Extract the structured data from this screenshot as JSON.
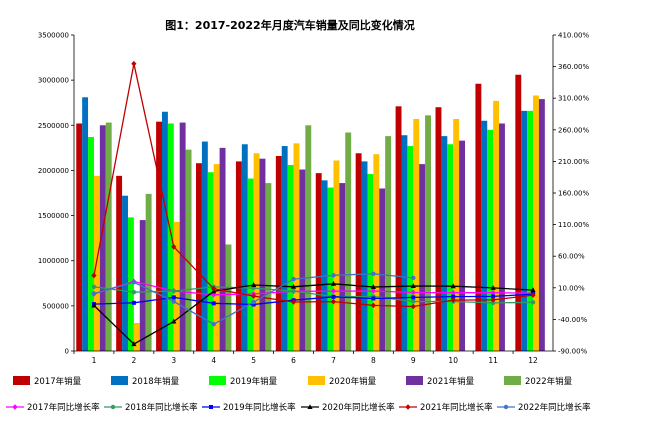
{
  "chart_data": {
    "type": "bar",
    "title": "图1：2017-2022年月度汽车销量及同比变化情况",
    "categories": [
      "1",
      "2",
      "3",
      "4",
      "5",
      "6",
      "7",
      "8",
      "9",
      "10",
      "11",
      "12"
    ],
    "left_axis": {
      "range": [
        0,
        3500000
      ],
      "ticks": [
        "0",
        "500000",
        "1000000",
        "1500000",
        "2000000",
        "2500000",
        "3000000",
        "3500000"
      ]
    },
    "right_axis": {
      "range": [
        -90,
        410
      ],
      "ticks": [
        "-90.00%",
        "-40.00%",
        "10.00%",
        "60.00%",
        "110.00%",
        "160.00%",
        "210.00%",
        "260.00%",
        "310.00%",
        "360.00%",
        "410.00%"
      ]
    },
    "grid": false,
    "legend_position": "bottom",
    "bar_series": [
      {
        "name": "2017年销量",
        "color": "#c00000",
        "values": [
          2520000,
          1940000,
          2540000,
          2080000,
          2100000,
          2160000,
          1970000,
          2190000,
          2710000,
          2700000,
          2960000,
          3060000
        ]
      },
      {
        "name": "2018年销量",
        "color": "#0070c0",
        "values": [
          2810000,
          1720000,
          2650000,
          2320000,
          2290000,
          2270000,
          1890000,
          2100000,
          2390000,
          2380000,
          2550000,
          2660000
        ]
      },
      {
        "name": "2019年销量",
        "color": "#00ff00",
        "values": [
          2370000,
          1480000,
          2520000,
          1980000,
          1910000,
          2060000,
          1810000,
          1960000,
          2270000,
          2290000,
          2450000,
          2660000
        ]
      },
      {
        "name": "2020年销量",
        "color": "#ffc000",
        "values": [
          1940000,
          310000,
          1430000,
          2070000,
          2190000,
          2300000,
          2110000,
          2180000,
          2570000,
          2570000,
          2770000,
          2830000
        ]
      },
      {
        "name": "2021年销量",
        "color": "#7030a0",
        "values": [
          2500000,
          1450000,
          2530000,
          2250000,
          2130000,
          2010000,
          1860000,
          1800000,
          2070000,
          2330000,
          2520000,
          2790000
        ]
      },
      {
        "name": "2022年销量",
        "color": "#70ad47",
        "values": [
          2530000,
          1740000,
          2230000,
          1180000,
          1860000,
          2500000,
          2420000,
          2380000,
          2610000,
          null,
          null,
          null
        ]
      }
    ],
    "line_series": [
      {
        "name": "2017年同比增长率",
        "color": "#ff00ff",
        "marker": "diamond",
        "values": [
          0.3,
          20,
          5,
          -1,
          0.3,
          4.5,
          4.8,
          5,
          2.6,
          2.3,
          2.3,
          1.4
        ]
      },
      {
        "name": "2018年同比增长率",
        "color": "#339966",
        "marker": "circle",
        "values": [
          11.6,
          3,
          5,
          11.5,
          9.6,
          4.8,
          -4,
          -3.7,
          -11.6,
          -11.7,
          -13.9,
          -13
        ]
      },
      {
        "name": "2019年同比增长率",
        "color": "#0000ff",
        "marker": "square",
        "values": [
          -15.8,
          -13.8,
          -5.2,
          -14.6,
          -16.4,
          -9.6,
          -4.3,
          -6.9,
          -5.2,
          -4,
          -3.6,
          0.1
        ]
      },
      {
        "name": "2020年同比增长率",
        "color": "#000000",
        "marker": "triangle",
        "values": [
          -18,
          -79.1,
          -43.3,
          4.4,
          14.5,
          11.6,
          16.4,
          11.3,
          12.8,
          12.5,
          9.9,
          6.4
        ]
      },
      {
        "name": "2021年同比增长率",
        "color": "#c00000",
        "marker": "diamond",
        "values": [
          29.4,
          364.6,
          74.9,
          8.6,
          -3.1,
          -12.4,
          -11.9,
          -17.8,
          -19.6,
          -9.4,
          -9.1,
          -1.6
        ]
      },
      {
        "name": "2022年同比增长率",
        "color": "#4472c4",
        "marker": "circle",
        "values": [
          0.9,
          18.7,
          -11.7,
          -47.6,
          -12.6,
          23.8,
          29.7,
          32.1,
          25.7,
          null,
          null,
          null
        ]
      }
    ]
  }
}
